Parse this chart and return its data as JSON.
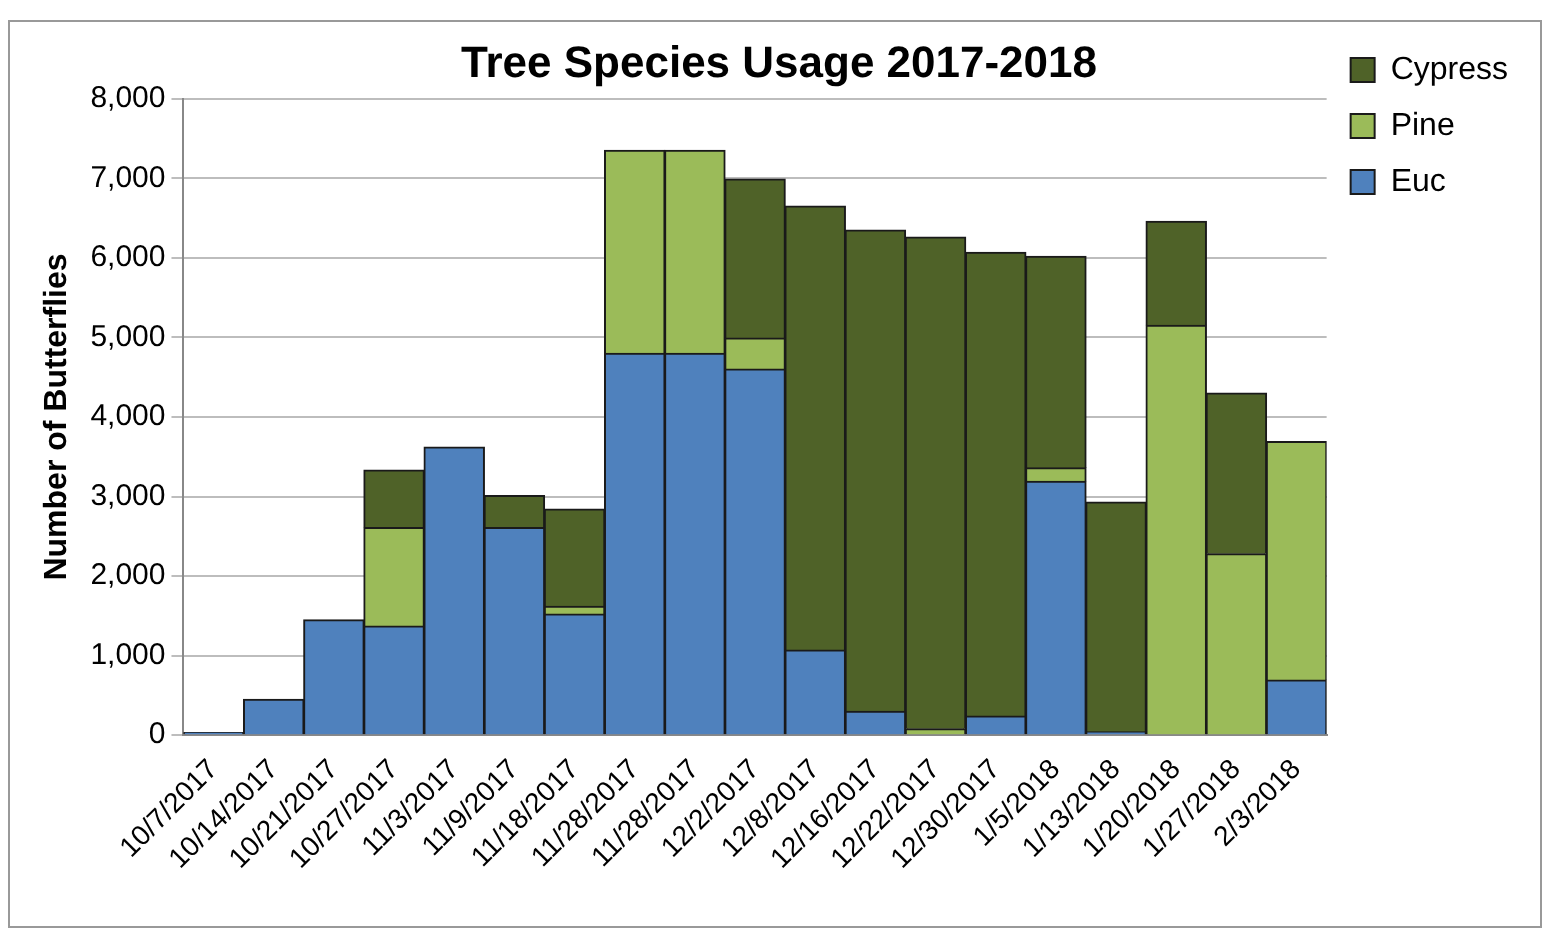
{
  "chart_data": {
    "type": "bar",
    "title": "Tree Species Usage 2017-2018",
    "ylabel": "Number of Butterflies",
    "categories": [
      "10/7/2017",
      "10/14/2017",
      "10/21/2017",
      "10/27/2017",
      "11/3/2017",
      "11/9/2017",
      "11/18/2017",
      "11/28/2017",
      "11/28/2017",
      "12/2/2017",
      "12/8/2017",
      "12/16/2017",
      "12/22/2017",
      "12/30/2017",
      "1/5/2018",
      "1/13/2018",
      "1/20/2018",
      "1/27/2018",
      "2/3/2018"
    ],
    "stacked": true,
    "series": [
      {
        "name": "Euc",
        "color": "#4f81bd",
        "values": [
          30,
          450,
          1450,
          1370,
          3620,
          2610,
          1520,
          4800,
          4800,
          4600,
          1070,
          300,
          0,
          240,
          3190,
          40,
          0,
          0,
          690
        ]
      },
      {
        "name": "Pine",
        "color": "#9bbb59",
        "values": [
          0,
          0,
          0,
          1240,
          0,
          0,
          100,
          2550,
          2550,
          390,
          0,
          0,
          80,
          0,
          170,
          0,
          5150,
          2280,
          3000
        ]
      },
      {
        "name": "Cypress",
        "color": "#4f6228",
        "values": [
          0,
          0,
          0,
          720,
          0,
          400,
          1220,
          0,
          0,
          2000,
          5580,
          6050,
          6180,
          5830,
          2660,
          2890,
          1310,
          2020,
          0
        ]
      }
    ],
    "ylim": [
      0,
      8000
    ],
    "yticks": [
      0,
      {
        "value": 1000,
        "label": "1,000"
      },
      {
        "value": 2000,
        "label": "2,000"
      },
      {
        "value": 3000,
        "label": "3,000"
      },
      {
        "value": 4000,
        "label": "4,000"
      },
      {
        "value": 5000,
        "label": "5,000"
      },
      {
        "value": 6000,
        "label": "6,000"
      },
      {
        "value": 7000,
        "label": "7,000"
      },
      {
        "value": 8000,
        "label": "8,000"
      }
    ],
    "grid": "y",
    "legend": "top right"
  }
}
